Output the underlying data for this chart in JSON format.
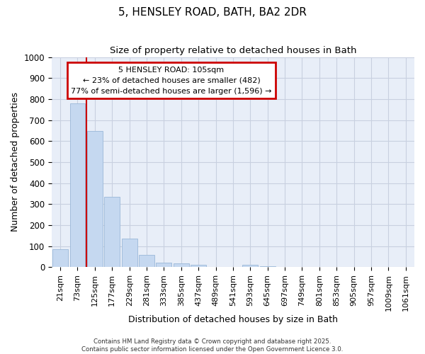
{
  "title": "5, HENSLEY ROAD, BATH, BA2 2DR",
  "subtitle": "Size of property relative to detached houses in Bath",
  "xlabel": "Distribution of detached houses by size in Bath",
  "ylabel": "Number of detached properties",
  "bar_categories": [
    "21sqm",
    "73sqm",
    "125sqm",
    "177sqm",
    "229sqm",
    "281sqm",
    "333sqm",
    "385sqm",
    "437sqm",
    "489sqm",
    "541sqm",
    "593sqm",
    "645sqm",
    "697sqm",
    "749sqm",
    "801sqm",
    "853sqm",
    "905sqm",
    "957sqm",
    "1009sqm",
    "1061sqm"
  ],
  "bar_values": [
    85,
    780,
    648,
    335,
    135,
    60,
    22,
    18,
    10,
    0,
    0,
    10,
    5,
    0,
    0,
    0,
    0,
    0,
    0,
    0,
    0
  ],
  "bar_color": "#c5d8f0",
  "bar_edgecolor": "#9ab8d8",
  "property_line_index": 2,
  "property_line_color": "#cc0000",
  "ylim": [
    0,
    1000
  ],
  "yticks": [
    0,
    100,
    200,
    300,
    400,
    500,
    600,
    700,
    800,
    900,
    1000
  ],
  "annotation_text_line1": "5 HENSLEY ROAD: 105sqm",
  "annotation_text_line2": "← 23% of detached houses are smaller (482)",
  "annotation_text_line3": "77% of semi-detached houses are larger (1,596) →",
  "annotation_box_color": "#cc0000",
  "footer_line1": "Contains HM Land Registry data © Crown copyright and database right 2025.",
  "footer_line2": "Contains public sector information licensed under the Open Government Licence 3.0.",
  "plot_bg_color": "#e8eef8",
  "fig_bg_color": "#ffffff",
  "grid_color": "#c8d0e0"
}
